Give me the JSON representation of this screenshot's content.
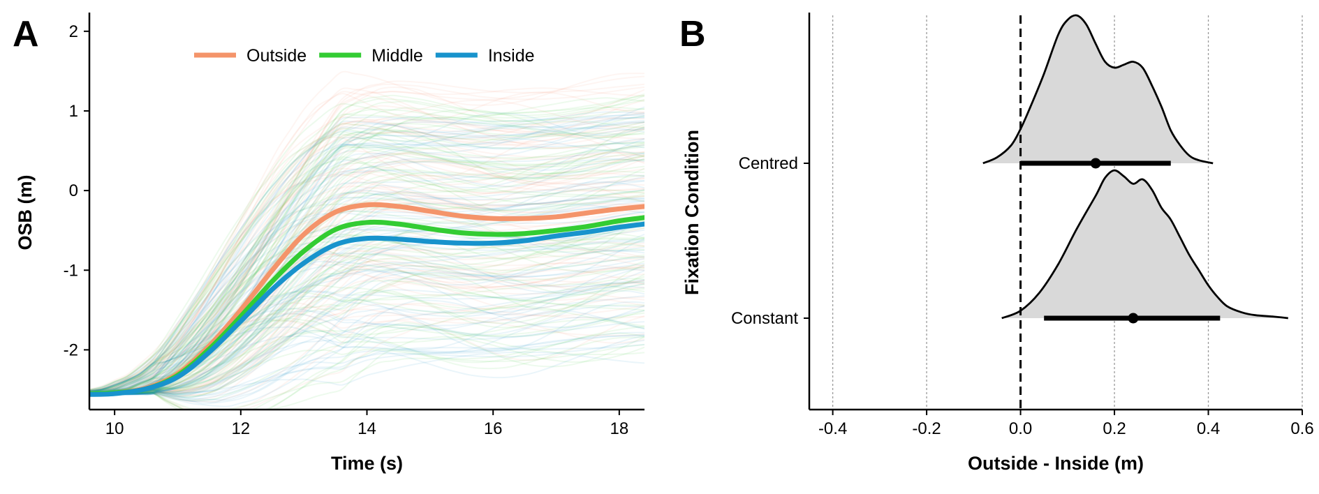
{
  "panel_a_letter": "A",
  "panel_b_letter": "B",
  "chart_data": [
    {
      "type": "line",
      "panel": "A",
      "xlabel": "Time (s)",
      "ylabel": "OSB (m)",
      "xlim": [
        9.6,
        18.4
      ],
      "ylim": [
        -2.75,
        2.2
      ],
      "x_ticks": [
        10,
        12,
        14,
        16,
        18
      ],
      "y_ticks": [
        -2,
        -1,
        0,
        1,
        2
      ],
      "legend_position": "top",
      "background_trials": "many faint individual trial traces per condition",
      "series": [
        {
          "name": "Outside",
          "color": "#F4946A",
          "x": [
            9.6,
            10.0,
            10.5,
            11.0,
            11.5,
            12.0,
            12.5,
            13.0,
            13.5,
            14.0,
            14.5,
            15.0,
            15.5,
            16.0,
            16.5,
            17.0,
            17.5,
            18.0,
            18.4
          ],
          "y": [
            -2.55,
            -2.54,
            -2.48,
            -2.3,
            -1.95,
            -1.5,
            -1.0,
            -0.55,
            -0.27,
            -0.18,
            -0.2,
            -0.26,
            -0.32,
            -0.35,
            -0.35,
            -0.33,
            -0.28,
            -0.23,
            -0.2
          ]
        },
        {
          "name": "Middle",
          "color": "#33CC33",
          "x": [
            9.6,
            10.0,
            10.5,
            11.0,
            11.5,
            12.0,
            12.5,
            13.0,
            13.5,
            14.0,
            14.5,
            15.0,
            15.5,
            16.0,
            16.5,
            17.0,
            17.5,
            18.0,
            18.4
          ],
          "y": [
            -2.55,
            -2.54,
            -2.49,
            -2.32,
            -1.99,
            -1.58,
            -1.14,
            -0.76,
            -0.49,
            -0.4,
            -0.42,
            -0.48,
            -0.53,
            -0.55,
            -0.54,
            -0.5,
            -0.45,
            -0.38,
            -0.34
          ]
        },
        {
          "name": "Inside",
          "color": "#1893CC",
          "x": [
            9.6,
            10.0,
            10.5,
            11.0,
            11.5,
            12.0,
            12.5,
            13.0,
            13.5,
            14.0,
            14.5,
            15.0,
            15.5,
            16.0,
            16.5,
            17.0,
            17.5,
            18.0,
            18.4
          ],
          "y": [
            -2.56,
            -2.55,
            -2.49,
            -2.34,
            -2.03,
            -1.64,
            -1.24,
            -0.91,
            -0.68,
            -0.6,
            -0.61,
            -0.64,
            -0.66,
            -0.66,
            -0.63,
            -0.57,
            -0.52,
            -0.46,
            -0.42
          ]
        }
      ]
    },
    {
      "type": "density",
      "panel": "B",
      "xlabel": "Outside - Inside (m)",
      "ylabel": "Fixation Condition",
      "xlim": [
        -0.45,
        0.6
      ],
      "x_ticks": [
        -0.4,
        -0.2,
        0.0,
        0.2,
        0.4,
        0.6
      ],
      "x_tick_labels": [
        "-0.4",
        "-0.2",
        "0.0",
        "0.2",
        "0.4",
        "0.6"
      ],
      "reference_line_x": 0.0,
      "grid": "vertical dotted",
      "fill_color": "#D9D9D9",
      "categories": [
        "Centred",
        "Constant"
      ],
      "intervals": [
        {
          "name": "Centred",
          "point": 0.16,
          "low": 0.0,
          "high": 0.32
        },
        {
          "name": "Constant",
          "point": 0.24,
          "low": 0.05,
          "high": 0.425
        }
      ],
      "densities": [
        {
          "name": "Centred",
          "x": [
            -0.08,
            -0.05,
            -0.02,
            0.0,
            0.02,
            0.05,
            0.08,
            0.1,
            0.12,
            0.14,
            0.16,
            0.18,
            0.2,
            0.22,
            0.24,
            0.26,
            0.28,
            0.3,
            0.32,
            0.34,
            0.36,
            0.38,
            0.41
          ],
          "y": [
            0.0,
            0.04,
            0.12,
            0.23,
            0.37,
            0.6,
            0.86,
            0.96,
            0.99,
            0.93,
            0.8,
            0.68,
            0.64,
            0.66,
            0.68,
            0.64,
            0.52,
            0.38,
            0.22,
            0.12,
            0.05,
            0.02,
            0.0
          ]
        },
        {
          "name": "Constant",
          "x": [
            -0.04,
            0.0,
            0.04,
            0.08,
            0.12,
            0.16,
            0.18,
            0.2,
            0.22,
            0.24,
            0.26,
            0.28,
            0.3,
            0.32,
            0.34,
            0.36,
            0.38,
            0.4,
            0.42,
            0.44,
            0.47,
            0.5,
            0.54,
            0.57
          ],
          "y": [
            0.0,
            0.05,
            0.17,
            0.36,
            0.6,
            0.82,
            0.94,
            0.99,
            0.95,
            0.9,
            0.93,
            0.86,
            0.74,
            0.66,
            0.54,
            0.42,
            0.32,
            0.22,
            0.14,
            0.08,
            0.04,
            0.02,
            0.01,
            0.0
          ]
        }
      ]
    }
  ]
}
